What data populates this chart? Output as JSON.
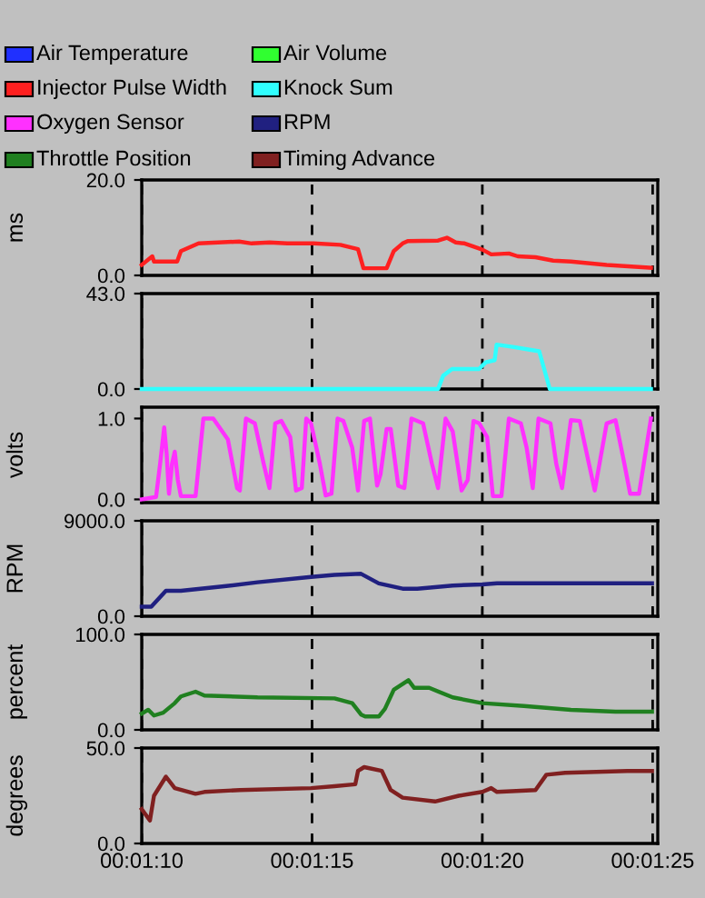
{
  "chart_data": [
    {
      "type": "line",
      "ylabel": "ms",
      "legend": "top",
      "grid": "x",
      "tick_labels": "y",
      "xlim": [
        70,
        85.15
      ],
      "xticks": [
        70,
        75,
        80,
        85
      ],
      "ylim": [
        0,
        20
      ],
      "yticks": [
        {
          "value": 0,
          "label": "0.0"
        },
        {
          "value": 20,
          "label": "20.0"
        }
      ],
      "series": [
        {
          "name": "Air Temperature",
          "color": "#2030ff"
        },
        {
          "name": "Air Volume",
          "color": "#30ff30"
        },
        {
          "name": "Injector Pulse Width",
          "color": "#ff2020",
          "x": [
            70,
            70.31,
            70.36,
            71.04,
            71.15,
            71.67,
            72.86,
            73.23,
            73.75,
            74.27,
            75.05,
            75.83,
            76.35,
            76.51,
            77.19,
            77.4,
            77.66,
            77.81,
            78.7,
            78.96,
            79.22,
            79.48,
            80.0,
            80.26,
            80.78,
            81.04,
            81.56,
            82.08,
            82.6,
            83.65,
            84.95
          ],
          "values": [
            2.2,
            4.0,
            2.9,
            2.9,
            5.1,
            6.7,
            7.1,
            6.7,
            6.9,
            6.7,
            6.7,
            6.4,
            5.5,
            1.5,
            1.5,
            5.1,
            6.7,
            7.2,
            7.3,
            7.9,
            6.9,
            6.7,
            5.4,
            4.4,
            4.6,
            4.0,
            3.8,
            3.1,
            2.9,
            2.2,
            1.6
          ]
        }
      ]
    },
    {
      "type": "line",
      "grid": "x",
      "tick_labels": "y",
      "xlim": [
        70,
        85.15
      ],
      "xticks": [
        70,
        75,
        80,
        85
      ],
      "ylim": [
        0,
        43
      ],
      "yticks": [
        {
          "value": 0,
          "label": "0.0"
        },
        {
          "value": 43,
          "label": "43.0"
        }
      ],
      "series": [
        {
          "name": "Knock Sum",
          "color": "#30ffff",
          "x": [
            70,
            78.7,
            78.85,
            79.11,
            79.9,
            80.1,
            80.36,
            80.42,
            80.89,
            81.67,
            81.98,
            84.95
          ],
          "values": [
            0,
            0,
            6,
            9,
            9,
            12,
            13,
            20,
            19,
            17,
            0,
            0
          ]
        }
      ]
    },
    {
      "type": "line",
      "ylabel": "volts",
      "grid": "x",
      "tick_labels": "y",
      "xlim": [
        70,
        85.15
      ],
      "xticks": [
        70,
        75,
        80,
        85
      ],
      "ylim": [
        -0.04,
        1.14
      ],
      "yticks": [
        {
          "value": 0,
          "label": "0.0"
        },
        {
          "value": 1,
          "label": "1.0"
        }
      ],
      "series": [
        {
          "name": "Oxygen Sensor",
          "color": "#ff30ff",
          "x": [
            70,
            70.42,
            70.54,
            70.66,
            70.73,
            70.8,
            70.89,
            70.97,
            71.06,
            71.15,
            71.58,
            71.81,
            72.1,
            72.53,
            72.8,
            72.88,
            73.06,
            73.32,
            73.58,
            73.75,
            73.92,
            74.1,
            74.36,
            74.53,
            74.7,
            74.83,
            74.97,
            75.23,
            75.4,
            75.57,
            75.75,
            75.92,
            76.18,
            76.35,
            76.53,
            76.7,
            76.91,
            77.01,
            77.19,
            77.31,
            77.53,
            77.71,
            77.92,
            78.26,
            78.52,
            78.7,
            78.92,
            79.13,
            79.39,
            79.57,
            79.74,
            79.91,
            80.14,
            80.31,
            80.56,
            80.78,
            81.13,
            81.3,
            81.48,
            81.65,
            82.0,
            82.17,
            82.34,
            82.6,
            82.86,
            83.13,
            83.3,
            83.65,
            83.91,
            84.17,
            84.34,
            84.6,
            84.95
          ],
          "values": [
            0.0,
            0.03,
            0.44,
            0.89,
            0.57,
            0.07,
            0.44,
            0.59,
            0.24,
            0.04,
            0.04,
            1.0,
            1.0,
            0.74,
            0.14,
            0.11,
            1.0,
            0.94,
            0.44,
            0.14,
            0.94,
            0.97,
            0.77,
            0.11,
            0.14,
            1.0,
            0.94,
            0.44,
            0.05,
            0.07,
            1.0,
            0.97,
            0.64,
            0.11,
            0.97,
            1.0,
            0.17,
            0.31,
            0.87,
            0.87,
            0.17,
            0.14,
            1.0,
            0.94,
            0.44,
            0.14,
            1.0,
            0.84,
            0.11,
            0.24,
            0.97,
            0.94,
            0.77,
            0.04,
            0.04,
            1.0,
            0.94,
            0.64,
            0.14,
            1.0,
            0.94,
            0.44,
            0.14,
            0.98,
            0.97,
            0.44,
            0.11,
            0.94,
            0.98,
            0.44,
            0.07,
            0.07,
            1.0
          ]
        }
      ]
    },
    {
      "type": "line",
      "ylabel": "RPM",
      "grid": "x",
      "tick_labels": "y",
      "xlim": [
        70,
        85.15
      ],
      "xticks": [
        70,
        75,
        80,
        85
      ],
      "ylim": [
        0,
        9000
      ],
      "yticks": [
        {
          "value": 0,
          "label": "0.0"
        },
        {
          "value": 9000,
          "label": "9000.0"
        }
      ],
      "series": [
        {
          "name": "RPM",
          "color": "#202080",
          "x": [
            70,
            70.28,
            70.71,
            71.15,
            72.36,
            73.4,
            74.97,
            75.66,
            76.44,
            76.96,
            77.66,
            78.09,
            79.13,
            80.0,
            80.43,
            84.98
          ],
          "values": [
            900,
            900,
            2400,
            2400,
            2800,
            3200,
            3700,
            3900,
            4000,
            3100,
            2600,
            2600,
            2900,
            3000,
            3100,
            3100
          ]
        }
      ]
    },
    {
      "type": "line",
      "ylabel": "percent",
      "grid": "x",
      "tick_labels": "y",
      "xlim": [
        70,
        85.15
      ],
      "xticks": [
        70,
        75,
        80,
        85
      ],
      "ylim": [
        0,
        100
      ],
      "yticks": [
        {
          "value": 0,
          "label": "0.0"
        },
        {
          "value": 100,
          "label": "100.0"
        }
      ],
      "series": [
        {
          "name": "Throttle Position",
          "color": "#208020",
          "x": [
            70,
            70.19,
            70.36,
            70.63,
            70.97,
            71.15,
            71.58,
            71.84,
            73.4,
            75.66,
            76.18,
            76.44,
            76.56,
            76.96,
            77.14,
            77.4,
            77.83,
            78.0,
            78.44,
            79.13,
            80.0,
            81.22,
            82.6,
            83.91,
            84.98
          ],
          "values": [
            17,
            21,
            15,
            18,
            28,
            35,
            40,
            36,
            34,
            33,
            28,
            16,
            14,
            14,
            22,
            42,
            52,
            44,
            44,
            34,
            28,
            25,
            21,
            19,
            19
          ]
        }
      ]
    },
    {
      "type": "line",
      "ylabel": "degrees",
      "grid": "x",
      "xlim": [
        70,
        85.15
      ],
      "xticks": [
        {
          "value": 70,
          "label": "00:01:10"
        },
        {
          "value": 75,
          "label": "00:01:15"
        },
        {
          "value": 80,
          "label": "00:01:20"
        },
        {
          "value": 85,
          "label": "00:01:25"
        }
      ],
      "ylim": [
        0,
        50
      ],
      "yticks": [
        {
          "value": 0,
          "label": "0.0"
        },
        {
          "value": 50,
          "label": "50.0"
        }
      ],
      "series": [
        {
          "name": "Timing Advance",
          "color": "#802020",
          "x": [
            70,
            70.24,
            70.36,
            70.71,
            70.97,
            71.58,
            71.84,
            72.88,
            74.97,
            75.66,
            76.27,
            76.35,
            76.53,
            77.05,
            77.31,
            77.66,
            78.61,
            79.31,
            80.0,
            80.26,
            80.43,
            81.56,
            81.88,
            82.43,
            84.25,
            84.98
          ],
          "values": [
            18,
            12,
            25,
            35,
            29,
            26,
            27,
            28,
            29,
            30,
            31,
            38,
            40,
            38,
            28,
            24,
            22,
            25,
            27,
            29,
            27,
            28,
            36,
            37,
            38,
            38
          ]
        }
      ]
    }
  ]
}
